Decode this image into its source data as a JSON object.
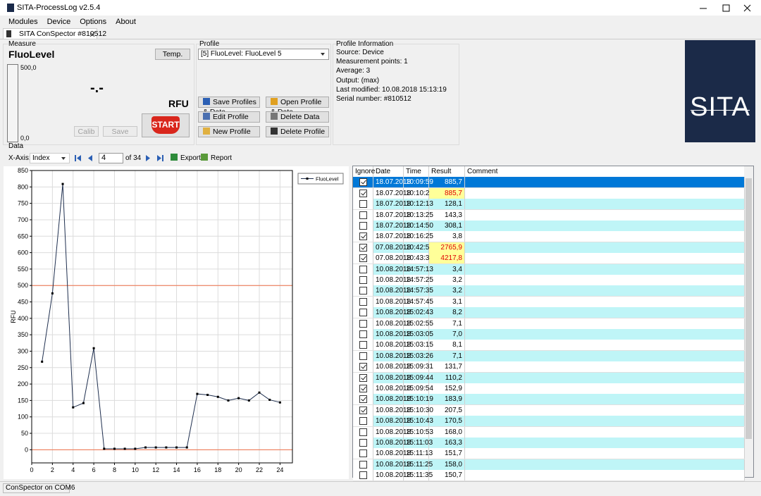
{
  "window": {
    "title": "SITA-ProcessLog v2.5.4"
  },
  "menu": [
    "Modules",
    "Device",
    "Options",
    "About"
  ],
  "tab": "SITA ConSpector #810512",
  "measure": {
    "group": "Measure",
    "name": "FluoLevel",
    "temp": "Temp.",
    "gauge_max": "500,0",
    "gauge_min": "0,0",
    "reading": "-.-",
    "unit": "RFU",
    "calib": "Calib",
    "save": "Save",
    "start": "START"
  },
  "profile": {
    "group": "Profile",
    "selected": "[5] FluoLevel: FluoLevel 5",
    "buttons": [
      "Save Profiles & Data",
      "Open Profile & Data",
      "Edit Profile",
      "Delete Data",
      "New Profile",
      "Delete Profile"
    ]
  },
  "profile_info": {
    "group": "Profile Information",
    "lines": [
      "Source: Device",
      "Measurement points: 1",
      "Average: 3",
      "Output: (max)",
      "Last modified: 10.08.2018 15:13:19",
      "Serial number: #810512"
    ]
  },
  "logo": "SITA",
  "data": {
    "group": "Data",
    "x_axis_label": "X-Axis:",
    "x_axis": "Index",
    "page": "4",
    "page_total": "of 34",
    "export": "Export",
    "report": "Report"
  },
  "chart_data": {
    "type": "line",
    "y_label": "RFU",
    "x": [
      1,
      2,
      3,
      4,
      5,
      6,
      7,
      8,
      9,
      10,
      11,
      12,
      13,
      14,
      15,
      16,
      17,
      18,
      19,
      20,
      21,
      22,
      23,
      24
    ],
    "series": [
      {
        "name": "FluoLevel",
        "color": "#1f2f4f",
        "values": [
          268,
          476,
          809,
          129,
          142,
          309,
          3,
          3,
          3,
          3,
          7,
          7,
          7,
          7,
          7,
          170,
          167,
          161,
          150,
          157,
          150,
          174,
          152,
          144
        ]
      }
    ],
    "xlim": [
      0,
      25.2
    ],
    "xticks": [
      0,
      2,
      4,
      6,
      8,
      10,
      12,
      14,
      16,
      18,
      20,
      22,
      24
    ],
    "ylim": [
      -40,
      850
    ],
    "yticks": [
      0,
      50,
      100,
      150,
      200,
      250,
      300,
      350,
      400,
      450,
      500,
      550,
      600,
      650,
      700,
      750,
      800,
      850
    ],
    "reference_lines": [
      {
        "value": 500,
        "color": "#f0704a"
      },
      {
        "value": 0,
        "color": "#f0704a"
      }
    ],
    "grid": true,
    "legend": "right"
  },
  "table": {
    "columns": [
      "Ignore",
      "Date",
      "Time",
      "Result",
      "Comment"
    ],
    "selected": 0,
    "rows": [
      {
        "ignore": true,
        "date": "18.07.2018",
        "time": "10:09:59",
        "result": "885,7",
        "highlight": false
      },
      {
        "ignore": true,
        "date": "18.07.2018",
        "time": "10:10:24",
        "result": "885,7",
        "highlight": true
      },
      {
        "ignore": false,
        "date": "18.07.2018",
        "time": "10:12:13",
        "result": "128,1",
        "highlight": false
      },
      {
        "ignore": false,
        "date": "18.07.2018",
        "time": "10:13:25",
        "result": "143,3",
        "highlight": false
      },
      {
        "ignore": false,
        "date": "18.07.2018",
        "time": "10:14:50",
        "result": "308,1",
        "highlight": false
      },
      {
        "ignore": true,
        "date": "18.07.2018",
        "time": "10:16:25",
        "result": "3,8",
        "highlight": false
      },
      {
        "ignore": true,
        "date": "07.08.2018",
        "time": "10:42:56",
        "result": "2765,9",
        "highlight": true
      },
      {
        "ignore": true,
        "date": "07.08.2018",
        "time": "10:43:35",
        "result": "4217,8",
        "highlight": true
      },
      {
        "ignore": false,
        "date": "10.08.2018",
        "time": "14:57:13",
        "result": "3,4",
        "highlight": false
      },
      {
        "ignore": false,
        "date": "10.08.2018",
        "time": "14:57:25",
        "result": "3,2",
        "highlight": false
      },
      {
        "ignore": false,
        "date": "10.08.2018",
        "time": "14:57:35",
        "result": "3,2",
        "highlight": false
      },
      {
        "ignore": false,
        "date": "10.08.2018",
        "time": "14:57:45",
        "result": "3,1",
        "highlight": false
      },
      {
        "ignore": false,
        "date": "10.08.2018",
        "time": "15:02:43",
        "result": "8,2",
        "highlight": false
      },
      {
        "ignore": false,
        "date": "10.08.2018",
        "time": "15:02:55",
        "result": "7,1",
        "highlight": false
      },
      {
        "ignore": false,
        "date": "10.08.2018",
        "time": "15:03:05",
        "result": "7,0",
        "highlight": false
      },
      {
        "ignore": false,
        "date": "10.08.2018",
        "time": "15:03:15",
        "result": "8,1",
        "highlight": false
      },
      {
        "ignore": false,
        "date": "10.08.2018",
        "time": "15:03:26",
        "result": "7,1",
        "highlight": false
      },
      {
        "ignore": true,
        "date": "10.08.2018",
        "time": "15:09:31",
        "result": "131,7",
        "highlight": false
      },
      {
        "ignore": true,
        "date": "10.08.2018",
        "time": "15:09:44",
        "result": "110,2",
        "highlight": false
      },
      {
        "ignore": true,
        "date": "10.08.2018",
        "time": "15:09:54",
        "result": "152,9",
        "highlight": false
      },
      {
        "ignore": true,
        "date": "10.08.2018",
        "time": "15:10:19",
        "result": "183,9",
        "highlight": false
      },
      {
        "ignore": true,
        "date": "10.08.2018",
        "time": "15:10:30",
        "result": "207,5",
        "highlight": false
      },
      {
        "ignore": false,
        "date": "10.08.2018",
        "time": "15:10:43",
        "result": "170,5",
        "highlight": false
      },
      {
        "ignore": false,
        "date": "10.08.2018",
        "time": "15:10:53",
        "result": "168,0",
        "highlight": false
      },
      {
        "ignore": false,
        "date": "10.08.2018",
        "time": "15:11:03",
        "result": "163,3",
        "highlight": false
      },
      {
        "ignore": false,
        "date": "10.08.2018",
        "time": "15:11:13",
        "result": "151,7",
        "highlight": false
      },
      {
        "ignore": false,
        "date": "10.08.2018",
        "time": "15:11:25",
        "result": "158,0",
        "highlight": false
      },
      {
        "ignore": false,
        "date": "10.08.2018",
        "time": "15:11:35",
        "result": "150,7",
        "highlight": false
      }
    ]
  },
  "status": "ConSpector on COM6"
}
